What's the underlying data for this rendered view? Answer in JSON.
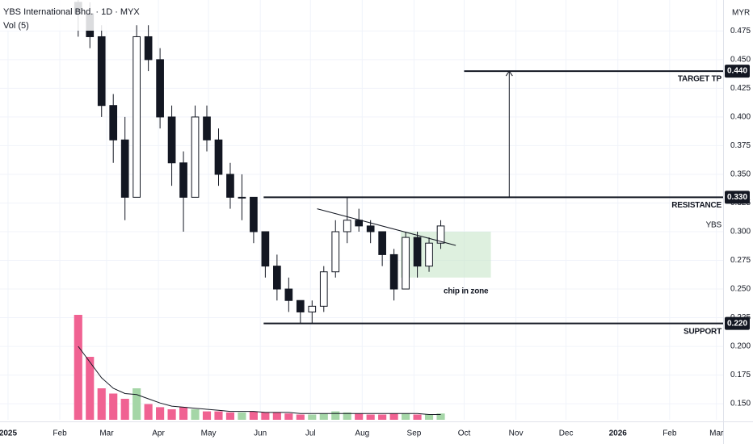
{
  "chart_data": {
    "type": "candlestick",
    "title": "YBS International Bhd. · 1D · MYX",
    "indicator": "Vol (5)",
    "currency": "MYR",
    "symbol": "YBS",
    "x": [
      42,
      49,
      56,
      63,
      70,
      77,
      84,
      91,
      98,
      105,
      112,
      119,
      126,
      133,
      140,
      147,
      154,
      161,
      168,
      175,
      182,
      189,
      196,
      203,
      210,
      217,
      224,
      231,
      238,
      245,
      252,
      259
    ],
    "open": [
      0.5,
      0.49,
      0.47,
      0.41,
      0.38,
      0.33,
      0.47,
      0.45,
      0.4,
      0.36,
      0.33,
      0.4,
      0.38,
      0.35,
      0.33,
      0.33,
      0.3,
      0.27,
      0.25,
      0.24,
      0.23,
      0.235,
      0.265,
      0.3,
      0.31,
      0.305,
      0.3,
      0.28,
      0.25,
      0.295,
      0.27,
      0.29
    ],
    "high": [
      0.51,
      0.5,
      0.48,
      0.42,
      0.4,
      0.48,
      0.48,
      0.46,
      0.41,
      0.37,
      0.41,
      0.41,
      0.39,
      0.36,
      0.35,
      0.33,
      0.3,
      0.28,
      0.26,
      0.24,
      0.24,
      0.27,
      0.31,
      0.33,
      0.32,
      0.31,
      0.3,
      0.285,
      0.3,
      0.3,
      0.295,
      0.31
    ],
    "low": [
      0.47,
      0.46,
      0.4,
      0.36,
      0.31,
      0.33,
      0.44,
      0.39,
      0.34,
      0.3,
      0.33,
      0.37,
      0.34,
      0.32,
      0.31,
      0.29,
      0.26,
      0.24,
      0.23,
      0.22,
      0.22,
      0.23,
      0.26,
      0.29,
      0.3,
      0.29,
      0.27,
      0.24,
      0.25,
      0.26,
      0.265,
      0.285
    ],
    "close": [
      0.49,
      0.47,
      0.41,
      0.38,
      0.33,
      0.47,
      0.45,
      0.4,
      0.36,
      0.33,
      0.4,
      0.38,
      0.35,
      0.33,
      0.33,
      0.3,
      0.27,
      0.25,
      0.24,
      0.23,
      0.235,
      0.265,
      0.3,
      0.31,
      0.305,
      0.3,
      0.28,
      0.25,
      0.295,
      0.27,
      0.29,
      0.305
    ],
    "volume": [
      100,
      60,
      30,
      25,
      20,
      30,
      15,
      12,
      10,
      12,
      10,
      8,
      8,
      7,
      7,
      8,
      7,
      7,
      6,
      5,
      5,
      6,
      8,
      7,
      6,
      5,
      5,
      6,
      6,
      5,
      5,
      6
    ],
    "volume_ma": [
      70,
      55,
      40,
      30,
      25,
      24,
      20,
      16,
      13,
      12,
      11,
      10,
      9,
      8,
      8,
      8,
      7,
      7,
      7,
      6,
      6,
      6,
      6,
      6,
      6,
      6,
      6,
      6,
      6,
      6,
      5,
      5
    ],
    "up_color": "#a5d6a7",
    "down_color": "#f06292",
    "xlim": [
      -4.8,
      428
    ],
    "xticks": [
      {
        "value": 0,
        "label": "2025"
      },
      {
        "value": 31,
        "label": "Feb"
      },
      {
        "value": 59,
        "label": "Mar"
      },
      {
        "value": 90,
        "label": "Apr"
      },
      {
        "value": 120,
        "label": "May"
      },
      {
        "value": 151,
        "label": "Jun"
      },
      {
        "value": 181,
        "label": "Jul"
      },
      {
        "value": 212,
        "label": "Aug"
      },
      {
        "value": 243,
        "label": "Sep"
      },
      {
        "value": 273,
        "label": "Oct"
      },
      {
        "value": 304,
        "label": "Nov"
      },
      {
        "value": 334,
        "label": "Dec"
      },
      {
        "value": 365,
        "label": "2026"
      },
      {
        "value": 396,
        "label": "Feb"
      },
      {
        "value": 424,
        "label": "Mar"
      }
    ],
    "ylim": [
      0.136,
      0.502
    ],
    "yticks": [
      0.475,
      {
        "value": 0.45,
        "label": "0.450"
      },
      0.425,
      {
        "value": 0.4,
        "label": "0.400"
      },
      0.375,
      {
        "value": 0.35,
        "label": "0.350"
      },
      0.325,
      {
        "value": 0.3,
        "label": "0.300"
      },
      0.275,
      {
        "value": 0.25,
        "label": "0.250"
      },
      0.225,
      {
        "value": 0.2,
        "label": "0.200"
      },
      0.175,
      {
        "value": 0.15,
        "label": "0.150"
      }
    ],
    "levels": [
      {
        "value": 0.44,
        "label": "0.440",
        "text": "TARGET  TP",
        "start": 273
      },
      {
        "value": 0.33,
        "label": "0.330",
        "text": "RESISTANCE",
        "start": 153
      },
      {
        "value": 0.22,
        "label": "0.220",
        "text": "SUPPORT",
        "start": 153
      }
    ],
    "arrow": {
      "x": 300,
      "y": [
        0.33,
        0.44
      ]
    },
    "trendline": {
      "x": [
        185,
        268
      ],
      "y": [
        0.32,
        0.288
      ]
    },
    "zone": {
      "x": [
        235,
        289
      ],
      "y": [
        0.26,
        0.3
      ],
      "label": "chip in zone"
    }
  }
}
